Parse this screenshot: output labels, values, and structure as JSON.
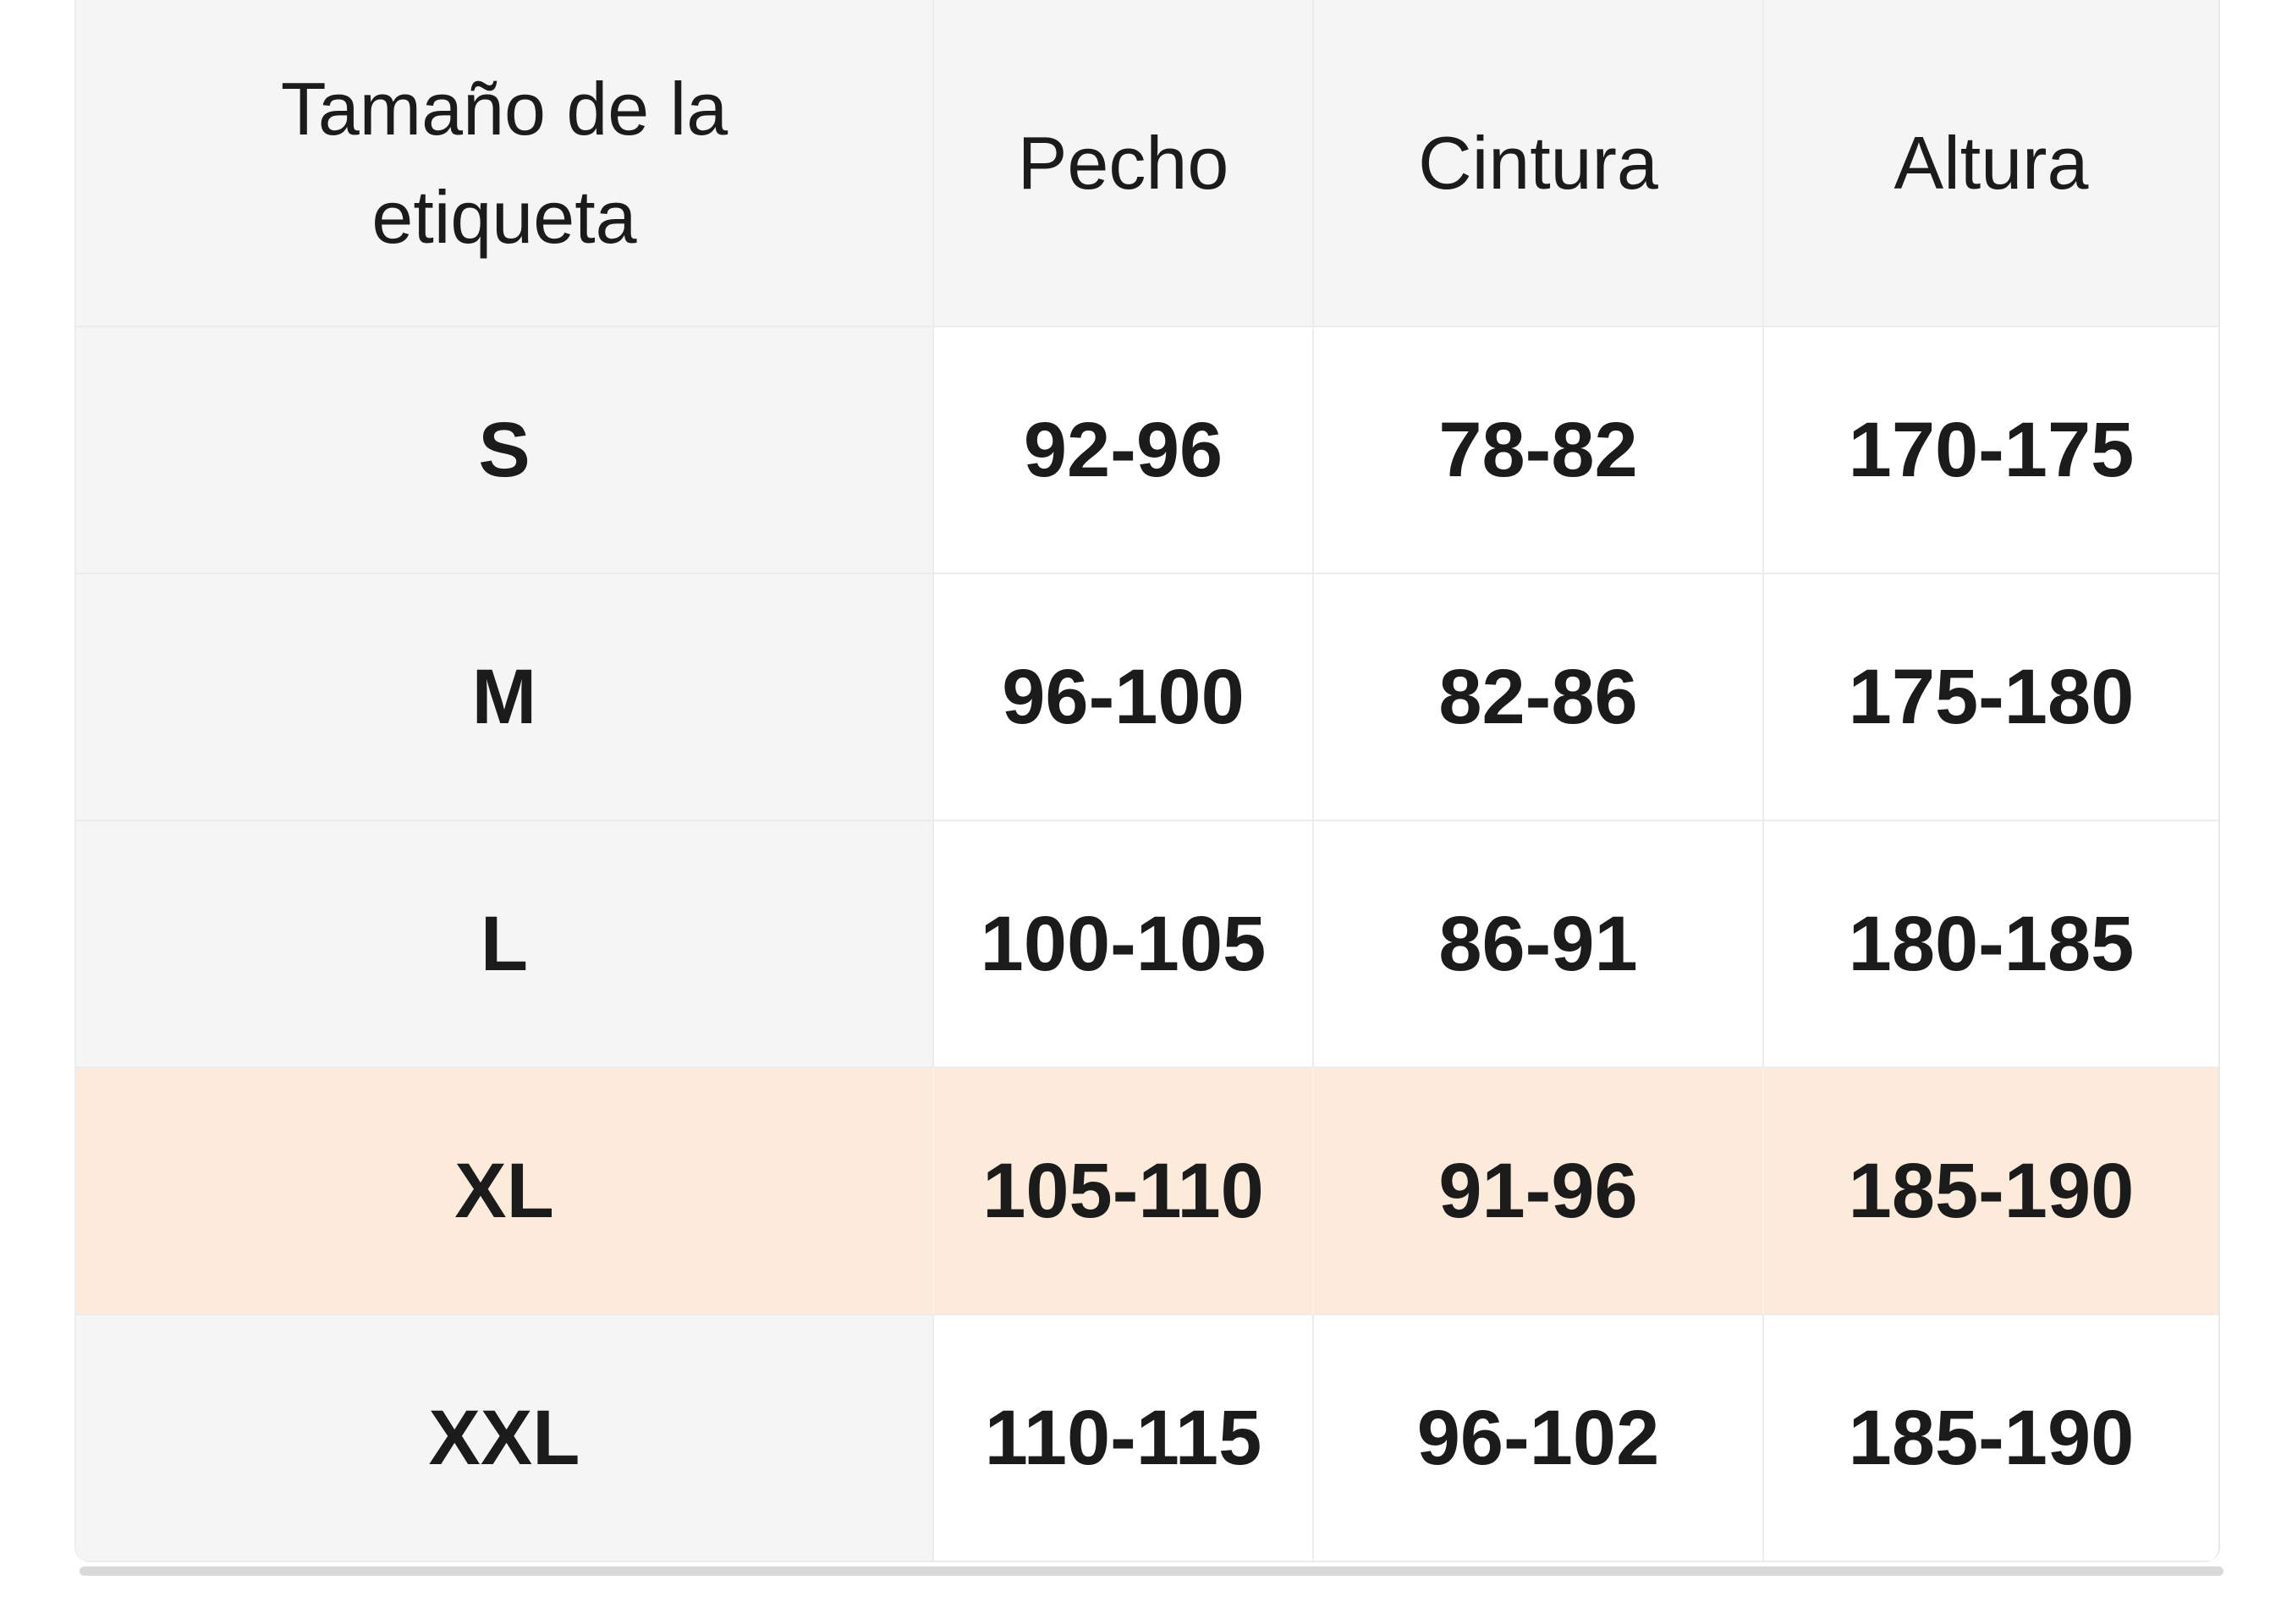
{
  "table": {
    "columns": [
      "Tamaño de la etiqueta",
      "Pecho",
      "Cintura",
      "Altura"
    ],
    "rows": [
      {
        "label": "S",
        "pecho": "92-96",
        "cintura": "78-82",
        "altura": "170-175",
        "highlighted": false
      },
      {
        "label": "M",
        "pecho": "96-100",
        "cintura": "82-86",
        "altura": "175-180",
        "highlighted": false
      },
      {
        "label": "L",
        "pecho": "100-105",
        "cintura": "86-91",
        "altura": "180-185",
        "highlighted": false
      },
      {
        "label": "XL",
        "pecho": "105-110",
        "cintura": "91-96",
        "altura": "185-190",
        "highlighted": true
      },
      {
        "label": "XXL",
        "pecho": "110-115",
        "cintura": "96-102",
        "altura": "185-190",
        "highlighted": false
      }
    ],
    "colors": {
      "header_bg": "#f5f5f6",
      "row_label_bg": "#f5f5f6",
      "cell_bg": "#ffffff",
      "highlight_bg": "#fcebda",
      "border": "#ececec",
      "bottom_divider": "#d9d9d9",
      "text": "#1b1b1b"
    }
  }
}
